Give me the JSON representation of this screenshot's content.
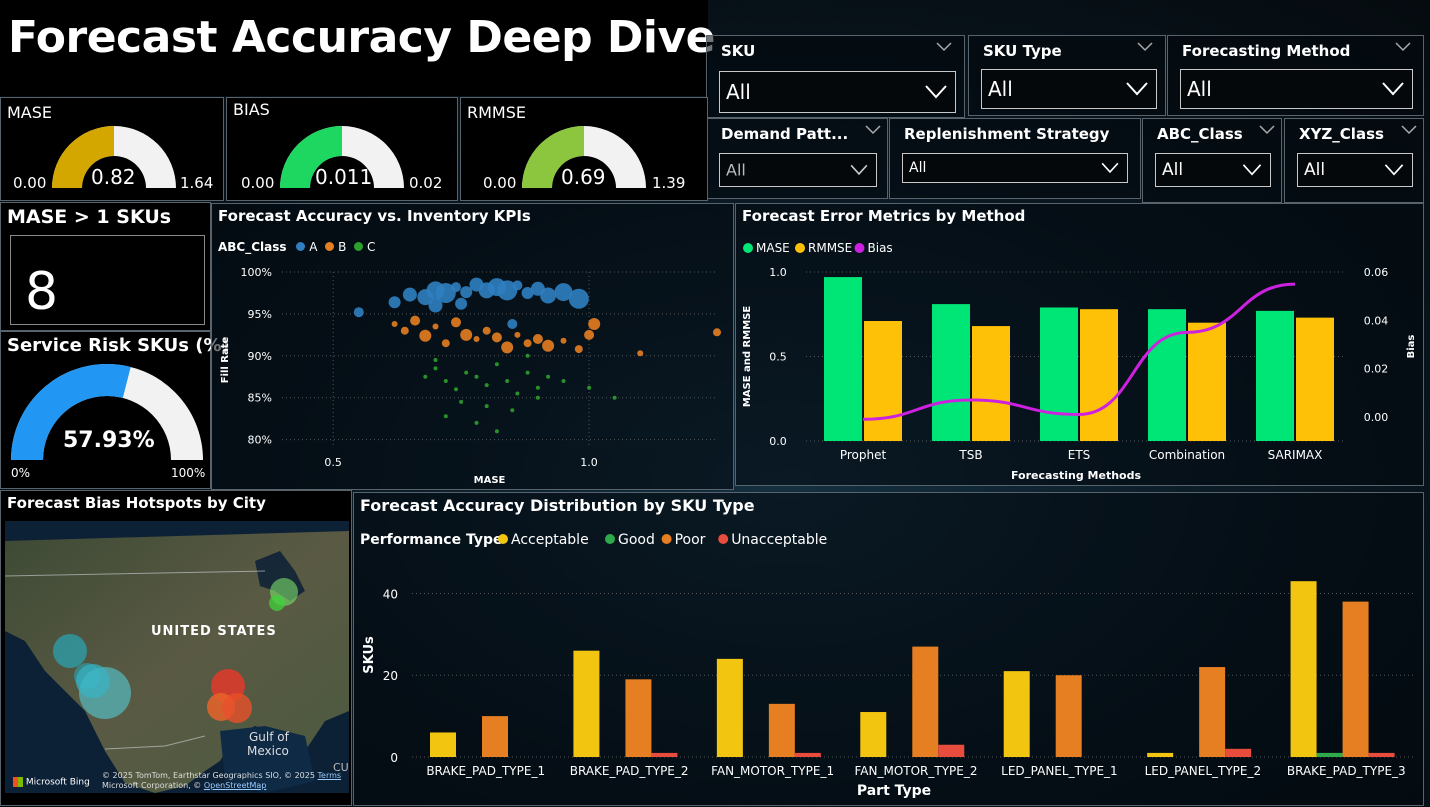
{
  "title": "Forecast Accuracy Deep Dive",
  "filters": [
    {
      "label": "SKU",
      "value": "All"
    },
    {
      "label": "SKU Type",
      "value": "All"
    },
    {
      "label": "Forecasting Method",
      "value": "All"
    },
    {
      "label": "Demand Patt...",
      "value": "All"
    },
    {
      "label": "Replenishment Strategy",
      "value": "All"
    },
    {
      "label": "ABC_Class",
      "value": "All"
    },
    {
      "label": "XYZ_Class",
      "value": "All"
    }
  ],
  "gauges": {
    "mase": {
      "title": "MASE",
      "min": "0.00",
      "value": "0.82",
      "max": "1.64",
      "fraction": 0.5,
      "color": "#d4a700"
    },
    "bias": {
      "title": "BIAS",
      "min": "0.00",
      "value": "0.011",
      "max": "0.02",
      "fraction": 0.5,
      "color": "#1ed760"
    },
    "rmmse": {
      "title": "RMMSE",
      "min": "0.00",
      "value": "0.69",
      "max": "1.39",
      "fraction": 0.5,
      "color": "#8cc63f"
    },
    "service_risk": {
      "title": "Service Risk SKUs (%)",
      "min": "0%",
      "value": "57.93%",
      "max": "100%",
      "fraction": 0.5793,
      "color": "#2196f3"
    }
  },
  "mase_card": {
    "title": "MASE > 1 SKUs",
    "value": "8"
  },
  "scatter": {
    "title": "Forecast Accuracy vs. Inventory KPIs",
    "legend_title": "ABC_Class",
    "classes": [
      {
        "name": "A",
        "color": "#2f7fc1"
      },
      {
        "name": "B",
        "color": "#e67e22"
      },
      {
        "name": "C",
        "color": "#2ca02c"
      }
    ],
    "xlabel": "MASE",
    "ylabel": "Fill Rate",
    "x_ticks": [
      "0.5",
      "1.0"
    ],
    "y_ticks": [
      "100%",
      "95%",
      "90%",
      "85%",
      "80%"
    ]
  },
  "map": {
    "title": "Forecast Bias Hotspots by City",
    "country_label": "UNITED STATES",
    "gulf_label1": "Gulf of",
    "gulf_label2": "Mexico",
    "edge_label": "CU",
    "bing": "Microsoft Bing",
    "copyright1": "© 2025 TomTom, Earthstar Geographics SIO, © 2025",
    "terms": "Terms",
    "copyright2": "Microsoft Corporation, ©",
    "osm": "OpenStreetMap"
  },
  "chart_data": [
    {
      "type": "scatter",
      "title": "Forecast Accuracy vs. Inventory KPIs",
      "xlabel": "MASE",
      "ylabel": "Fill Rate",
      "xlim": [
        0.4,
        1.25
      ],
      "ylim": [
        0.79,
        1.0
      ],
      "series": [
        {
          "name": "A",
          "points": [
            [
              0.55,
              0.952
            ],
            [
              0.62,
              0.964
            ],
            [
              0.65,
              0.973
            ],
            [
              0.68,
              0.97
            ],
            [
              0.7,
              0.978
            ],
            [
              0.72,
              0.975
            ],
            [
              0.74,
              0.982
            ],
            [
              0.76,
              0.976
            ],
            [
              0.78,
              0.985
            ],
            [
              0.8,
              0.978
            ],
            [
              0.82,
              0.982
            ],
            [
              0.84,
              0.978
            ],
            [
              0.86,
              0.984
            ],
            [
              0.88,
              0.975
            ],
            [
              0.9,
              0.98
            ],
            [
              0.92,
              0.972
            ],
            [
              0.95,
              0.976
            ],
            [
              0.98,
              0.968
            ],
            [
              0.85,
              0.938
            ],
            [
              0.75,
              0.962
            ],
            [
              0.7,
              0.96
            ]
          ]
        },
        {
          "name": "B",
          "points": [
            [
              0.62,
              0.938
            ],
            [
              0.64,
              0.93
            ],
            [
              0.66,
              0.942
            ],
            [
              0.68,
              0.924
            ],
            [
              0.7,
              0.935
            ],
            [
              0.72,
              0.915
            ],
            [
              0.74,
              0.94
            ],
            [
              0.76,
              0.925
            ],
            [
              0.78,
              0.92
            ],
            [
              0.8,
              0.93
            ],
            [
              0.82,
              0.922
            ],
            [
              0.84,
              0.91
            ],
            [
              0.86,
              0.925
            ],
            [
              0.88,
              0.915
            ],
            [
              0.9,
              0.92
            ],
            [
              0.92,
              0.912
            ],
            [
              0.95,
              0.918
            ],
            [
              0.98,
              0.908
            ],
            [
              1.0,
              0.925
            ],
            [
              1.01,
              0.938
            ],
            [
              1.1,
              0.903
            ],
            [
              1.25,
              0.928
            ]
          ]
        },
        {
          "name": "C",
          "points": [
            [
              0.68,
              0.875
            ],
            [
              0.7,
              0.885
            ],
            [
              0.72,
              0.87
            ],
            [
              0.74,
              0.86
            ],
            [
              0.76,
              0.88
            ],
            [
              0.78,
              0.875
            ],
            [
              0.8,
              0.865
            ],
            [
              0.82,
              0.89
            ],
            [
              0.84,
              0.87
            ],
            [
              0.86,
              0.855
            ],
            [
              0.88,
              0.88
            ],
            [
              0.9,
              0.862
            ],
            [
              0.92,
              0.875
            ],
            [
              0.75,
              0.845
            ],
            [
              0.8,
              0.84
            ],
            [
              0.85,
              0.835
            ],
            [
              0.72,
              0.828
            ],
            [
              0.78,
              0.82
            ],
            [
              0.82,
              0.81
            ],
            [
              0.9,
              0.85
            ],
            [
              0.95,
              0.87
            ],
            [
              1.0,
              0.862
            ],
            [
              1.05,
              0.85
            ],
            [
              0.7,
              0.895
            ],
            [
              0.88,
              0.9
            ]
          ]
        }
      ]
    },
    {
      "type": "bar",
      "title": "Forecast Error Metrics by Method",
      "xlabel": "Forecasting Methods",
      "ylabel": "MASE and RMMSE",
      "y2label": "Bias",
      "categories": [
        "Prophet",
        "TSB",
        "ETS",
        "Combination",
        "SARIMAX"
      ],
      "ylim": [
        0,
        1.0
      ],
      "y2lim": [
        -0.01,
        0.06
      ],
      "y_ticks": [
        "1.0",
        "0.5",
        "0.0"
      ],
      "y2_ticks": [
        "0.06",
        "0.04",
        "0.02",
        "0.00"
      ],
      "series": [
        {
          "name": "MASE",
          "color": "#00e676",
          "values": [
            0.97,
            0.81,
            0.79,
            0.78,
            0.77
          ]
        },
        {
          "name": "RMMSE",
          "color": "#ffc107",
          "values": [
            0.71,
            0.68,
            0.78,
            0.7,
            0.73
          ]
        },
        {
          "name": "Bias",
          "color": "#cc22e0",
          "type": "line",
          "values": [
            -0.001,
            0.007,
            0.001,
            0.035,
            0.055
          ]
        }
      ]
    },
    {
      "type": "bar",
      "title": "Forecast Accuracy Distribution by SKU Type",
      "legend_title": "Performance Type",
      "xlabel": "Part Type",
      "ylabel": "SKUs",
      "ylim": [
        0,
        45
      ],
      "y_ticks": [
        "40",
        "20",
        "0"
      ],
      "categories": [
        "BRAKE_PAD_TYPE_1",
        "BRAKE_PAD_TYPE_2",
        "FAN_MOTOR_TYPE_1",
        "FAN_MOTOR_TYPE_2",
        "LED_PANEL_TYPE_1",
        "LED_PANEL_TYPE_2",
        "BRAKE_PAD_TYPE_3"
      ],
      "series": [
        {
          "name": "Acceptable",
          "color": "#f2c511",
          "values": [
            6,
            26,
            24,
            11,
            21,
            1,
            43
          ]
        },
        {
          "name": "Good",
          "color": "#2eaa4a",
          "values": [
            0,
            0,
            0,
            0,
            0,
            0,
            1
          ]
        },
        {
          "name": "Poor",
          "color": "#e67e22",
          "values": [
            10,
            19,
            13,
            27,
            20,
            22,
            38
          ]
        },
        {
          "name": "Unacceptable",
          "color": "#e74c3c",
          "values": [
            0,
            1,
            1,
            3,
            0,
            2,
            1
          ]
        }
      ]
    }
  ]
}
